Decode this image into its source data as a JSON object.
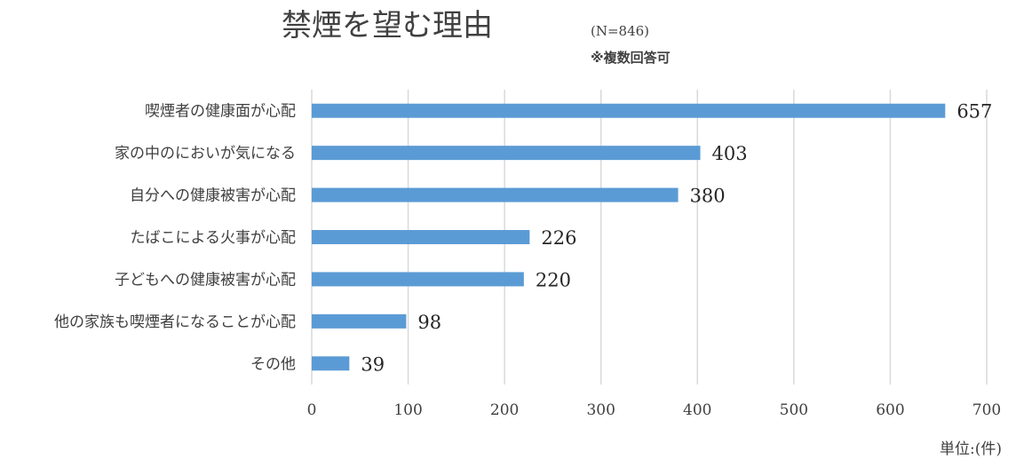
{
  "chart_data": {
    "type": "bar",
    "orientation": "horizontal",
    "title": "禁煙を望む理由",
    "title_note": "(N=846)",
    "subtitle": "※複数回答可",
    "unit_label": "単位:(件)",
    "categories": [
      "喫煙者の健康面が心配",
      "家の中のにおいが気になる",
      "自分への健康被害が心配",
      "たばこによる火事が心配",
      "子どもへの健康被害が心配",
      "他の家族も喫煙者になることが心配",
      "その他"
    ],
    "values": [
      657,
      403,
      380,
      226,
      220,
      98,
      39
    ],
    "xlim": [
      0,
      700
    ],
    "x_ticks": [
      0,
      100,
      200,
      300,
      400,
      500,
      600,
      700
    ],
    "grid": true,
    "legend": "none",
    "bar_color": "#5b9bd5",
    "grid_color": "#d9d9d9"
  }
}
